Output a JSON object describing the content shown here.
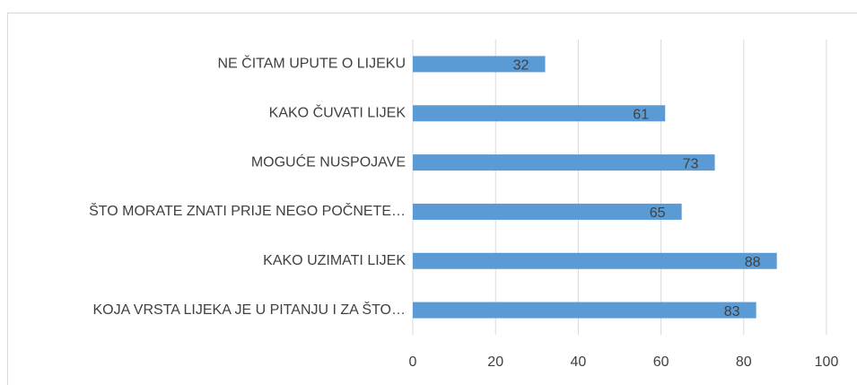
{
  "chart_data": {
    "type": "bar",
    "orientation": "horizontal",
    "categories": [
      "NE ČITAM UPUTE O LIJEKU",
      "KAKO ČUVATI LIJEK",
      "MOGUĆE NUSPOJAVE",
      "ŠTO MORATE ZNATI PRIJE NEGO POČNETE…",
      "KAKO UZIMATI LIJEK",
      "KOJA VRSTA LIJEKA JE U PITANJU I ZA ŠTO…"
    ],
    "values": [
      32,
      61,
      73,
      65,
      88,
      83
    ],
    "color": "#5b9bd5",
    "xlim": [
      0,
      100
    ],
    "xticks": [
      0,
      20,
      40,
      60,
      80,
      100
    ],
    "grid": true
  }
}
